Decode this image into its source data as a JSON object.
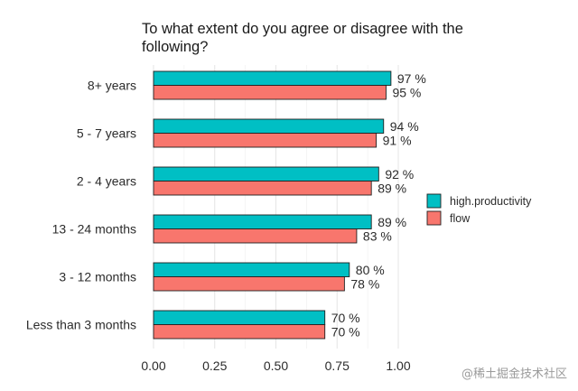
{
  "colors": {
    "series_1": "#00BFC4",
    "series_2": "#F8766D",
    "grid": "#e6e6e6",
    "bar_outline": "#1f1f1f"
  },
  "watermark": "@稀土掘金技术社区",
  "chart_data": {
    "type": "bar",
    "orientation": "horizontal",
    "title_lines": [
      "To what extent do you agree or disagree with the",
      "following?"
    ],
    "categories": [
      "8+ years",
      "5 - 7 years",
      "2 - 4 years",
      "13 - 24 months",
      "3 - 12 months",
      "Less than 3 months"
    ],
    "series": [
      {
        "name": "high.productivity",
        "values": [
          0.97,
          0.94,
          0.92,
          0.89,
          0.8,
          0.7
        ],
        "labels": [
          "97 %",
          "94 %",
          "92 %",
          "89 %",
          "80 %",
          "70 %"
        ]
      },
      {
        "name": "flow",
        "values": [
          0.95,
          0.91,
          0.89,
          0.83,
          0.78,
          0.7
        ],
        "labels": [
          "95 %",
          "91 %",
          "89 %",
          "83 %",
          "78 %",
          "70 %"
        ]
      }
    ],
    "xlim": [
      0,
      1.0
    ],
    "xticks": [
      0,
      0.25,
      0.5,
      0.75,
      1.0
    ],
    "xtick_labels": [
      "0.00",
      "0.25",
      "0.50",
      "0.75",
      "1.00"
    ],
    "xlabel": "",
    "ylabel": "",
    "grid": true,
    "legend_position": "right"
  }
}
